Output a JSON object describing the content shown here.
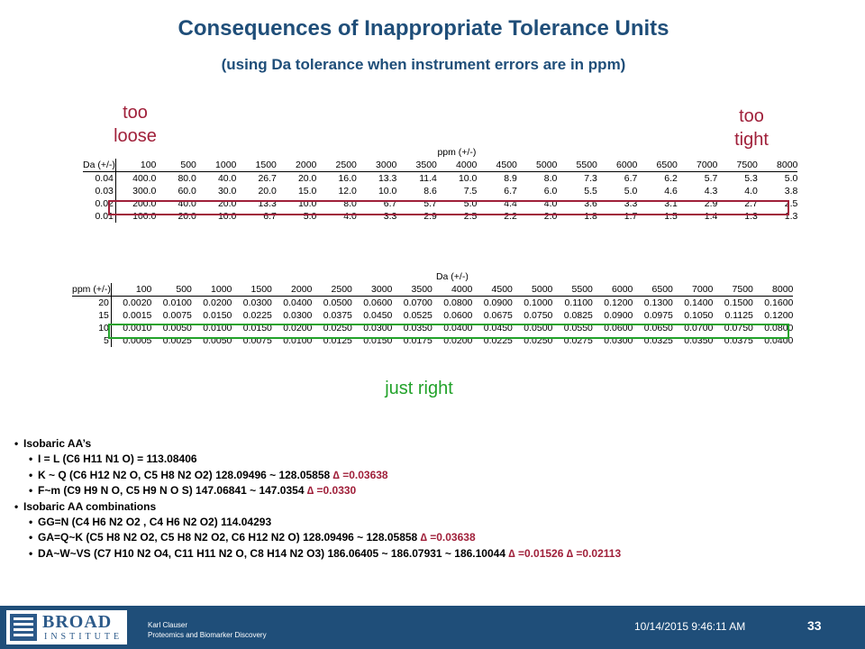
{
  "title": "Consequences of Inappropriate Tolerance Units",
  "subtitle": "(using Da tolerance when instrument errors are in ppm)",
  "notes": {
    "too_loose": [
      "too",
      "loose"
    ],
    "too_tight": [
      "too",
      "tight"
    ],
    "just_right": "just right"
  },
  "table1": {
    "caption": "ppm (+/-)",
    "corner": "Da (+/-)",
    "columns": [
      "100",
      "500",
      "1000",
      "1500",
      "2000",
      "2500",
      "3000",
      "3500",
      "4000",
      "4500",
      "5000",
      "5500",
      "6000",
      "6500",
      "7000",
      "7500",
      "8000"
    ],
    "rows": [
      {
        "label": "0.04",
        "values": [
          "400.0",
          "80.0",
          "40.0",
          "26.7",
          "20.0",
          "16.0",
          "13.3",
          "11.4",
          "10.0",
          "8.9",
          "8.0",
          "7.3",
          "6.7",
          "6.2",
          "5.7",
          "5.3",
          "5.0"
        ]
      },
      {
        "label": "0.03",
        "values": [
          "300.0",
          "60.0",
          "30.0",
          "20.0",
          "15.0",
          "12.0",
          "10.0",
          "8.6",
          "7.5",
          "6.7",
          "6.0",
          "5.5",
          "5.0",
          "4.6",
          "4.3",
          "4.0",
          "3.8"
        ]
      },
      {
        "label": "0.02",
        "values": [
          "200.0",
          "40.0",
          "20.0",
          "13.3",
          "10.0",
          "8.0",
          "6.7",
          "5.7",
          "5.0",
          "4.4",
          "4.0",
          "3.6",
          "3.3",
          "3.1",
          "2.9",
          "2.7",
          "2.5"
        ]
      },
      {
        "label": "0.01",
        "values": [
          "100.0",
          "20.0",
          "10.0",
          "6.7",
          "5.0",
          "4.0",
          "3.3",
          "2.9",
          "2.5",
          "2.2",
          "2.0",
          "1.8",
          "1.7",
          "1.5",
          "1.4",
          "1.3",
          "1.3"
        ]
      }
    ]
  },
  "table2": {
    "caption": "Da (+/-)",
    "corner": "ppm (+/-)",
    "columns": [
      "100",
      "500",
      "1000",
      "1500",
      "2000",
      "2500",
      "3000",
      "3500",
      "4000",
      "4500",
      "5000",
      "5500",
      "6000",
      "6500",
      "7000",
      "7500",
      "8000"
    ],
    "rows": [
      {
        "label": "20",
        "values": [
          "0.0020",
          "0.0100",
          "0.0200",
          "0.0300",
          "0.0400",
          "0.0500",
          "0.0600",
          "0.0700",
          "0.0800",
          "0.0900",
          "0.1000",
          "0.1100",
          "0.1200",
          "0.1300",
          "0.1400",
          "0.1500",
          "0.1600"
        ]
      },
      {
        "label": "15",
        "values": [
          "0.0015",
          "0.0075",
          "0.0150",
          "0.0225",
          "0.0300",
          "0.0375",
          "0.0450",
          "0.0525",
          "0.0600",
          "0.0675",
          "0.0750",
          "0.0825",
          "0.0900",
          "0.0975",
          "0.1050",
          "0.1125",
          "0.1200"
        ]
      },
      {
        "label": "10",
        "values": [
          "0.0010",
          "0.0050",
          "0.0100",
          "0.0150",
          "0.0200",
          "0.0250",
          "0.0300",
          "0.0350",
          "0.0400",
          "0.0450",
          "0.0500",
          "0.0550",
          "0.0600",
          "0.0650",
          "0.0700",
          "0.0750",
          "0.0800"
        ]
      },
      {
        "label": "5",
        "values": [
          "0.0005",
          "0.0025",
          "0.0050",
          "0.0075",
          "0.0100",
          "0.0125",
          "0.0150",
          "0.0175",
          "0.0200",
          "0.0225",
          "0.0250",
          "0.0275",
          "0.0300",
          "0.0325",
          "0.0350",
          "0.0375",
          "0.0400"
        ]
      }
    ]
  },
  "bullets": [
    {
      "level": 1,
      "text": "Isobaric AA’s",
      "highlight": ""
    },
    {
      "level": 2,
      "text": "I = L (C6 H11 N1 O) = 113.08406",
      "highlight": ""
    },
    {
      "level": 2,
      "text": "K ~ Q (C6 H12 N2 O, C5 H8 N2 O2) 128.09496 ~ 128.05858 ",
      "highlight": "∆ =0.03638"
    },
    {
      "level": 2,
      "text": "F~m (C9 H9 N O, C5 H9 N O S) 147.06841 ~ 147.0354  ",
      "highlight": "∆ =0.0330"
    },
    {
      "level": 1,
      "text": "Isobaric AA combinations",
      "highlight": ""
    },
    {
      "level": 2,
      "text": "GG=N (C4 H6 N2 O2 , C4 H6 N2 O2) 114.04293",
      "highlight": ""
    },
    {
      "level": 2,
      "text": "GA=Q~K  (C5 H8 N2 O2, C5 H8 N2 O2, C6 H12 N2 O) 128.09496 ~ 128.05858 ",
      "highlight": "∆ =0.03638"
    },
    {
      "level": 2,
      "text": "DA~W~VS (C7 H10 N2 O4, C11 H11 N2 O, C8 H14 N2 O3) 186.06405 ~ 186.07931 ~ 186.10044  ",
      "highlight": "∆ =0.01526 ∆ =0.02113"
    }
  ],
  "footer": {
    "logo_top": "BROAD",
    "logo_bottom": "INSTITUTE",
    "author_name": "Karl Clauser",
    "author_group": "Proteomics and Biomarker Discovery",
    "date": "10/14/2015 9:46:11 AM",
    "page_number": "33"
  },
  "colors": {
    "title": "#1f4e79",
    "too_loose_tight": "#a0203a",
    "just_right": "#22a22a",
    "footer": "#1f4e79"
  }
}
